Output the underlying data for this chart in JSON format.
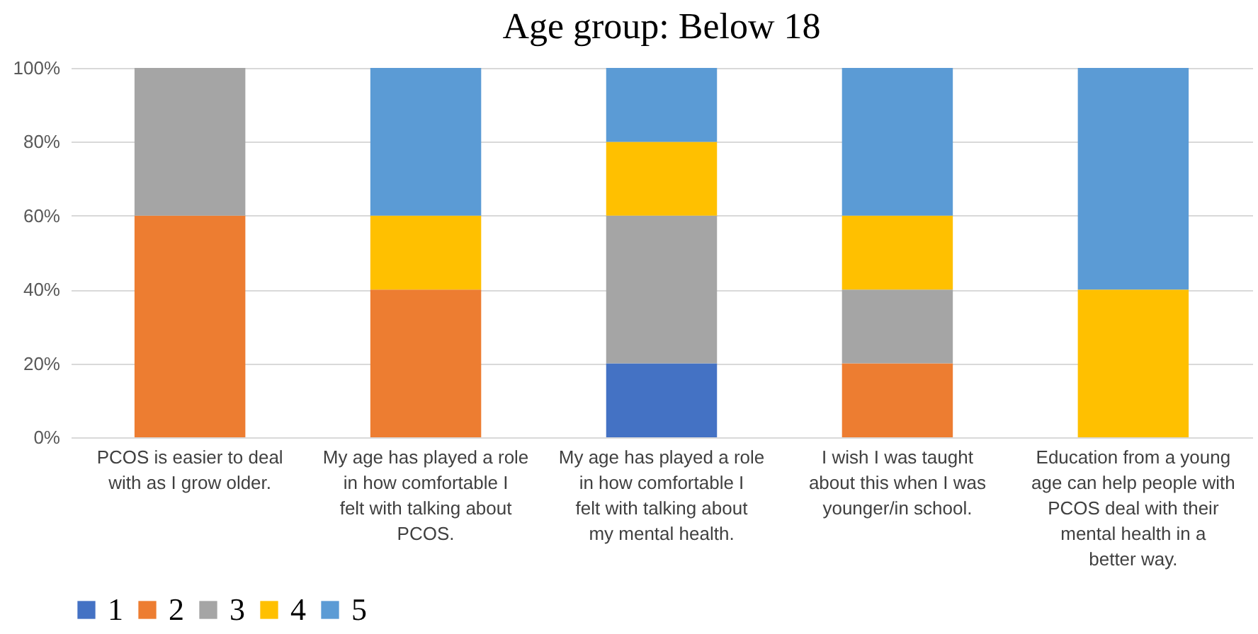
{
  "chart_data": {
    "type": "bar",
    "stacked": true,
    "title": "Age group: Below 18",
    "categories": [
      "PCOS is easier to deal with as I grow older.",
      "My age has played a role in how comfortable I felt with talking about PCOS.",
      "My age has played a role in how comfortable I felt with talking about my mental health.",
      "I wish I was taught about this when I was younger/in school.",
      "Education from a young age can help people with PCOS deal with their mental health in a better way."
    ],
    "series": [
      {
        "name": "1",
        "color": "#4472c4",
        "values": [
          null,
          null,
          20,
          null,
          null
        ]
      },
      {
        "name": "2",
        "color": "#ed7d31",
        "values": [
          60,
          40,
          null,
          20,
          null
        ]
      },
      {
        "name": "3",
        "color": "#a5a5a5",
        "values": [
          40,
          null,
          40,
          20,
          null
        ]
      },
      {
        "name": "4",
        "color": "#ffc000",
        "values": [
          null,
          20,
          20,
          20,
          40
        ]
      },
      {
        "name": "5",
        "color": "#5b9bd5",
        "values": [
          null,
          40,
          20,
          40,
          60
        ]
      }
    ],
    "ylim": [
      0,
      100
    ],
    "yticks": [
      {
        "value": 0,
        "label": "0%"
      },
      {
        "value": 20,
        "label": "20%"
      },
      {
        "value": 40,
        "label": "40%"
      },
      {
        "value": 60,
        "label": "60%"
      },
      {
        "value": 80,
        "label": "80%"
      },
      {
        "value": 100,
        "label": "100%"
      }
    ],
    "grid": "y",
    "legend": "bottom"
  }
}
